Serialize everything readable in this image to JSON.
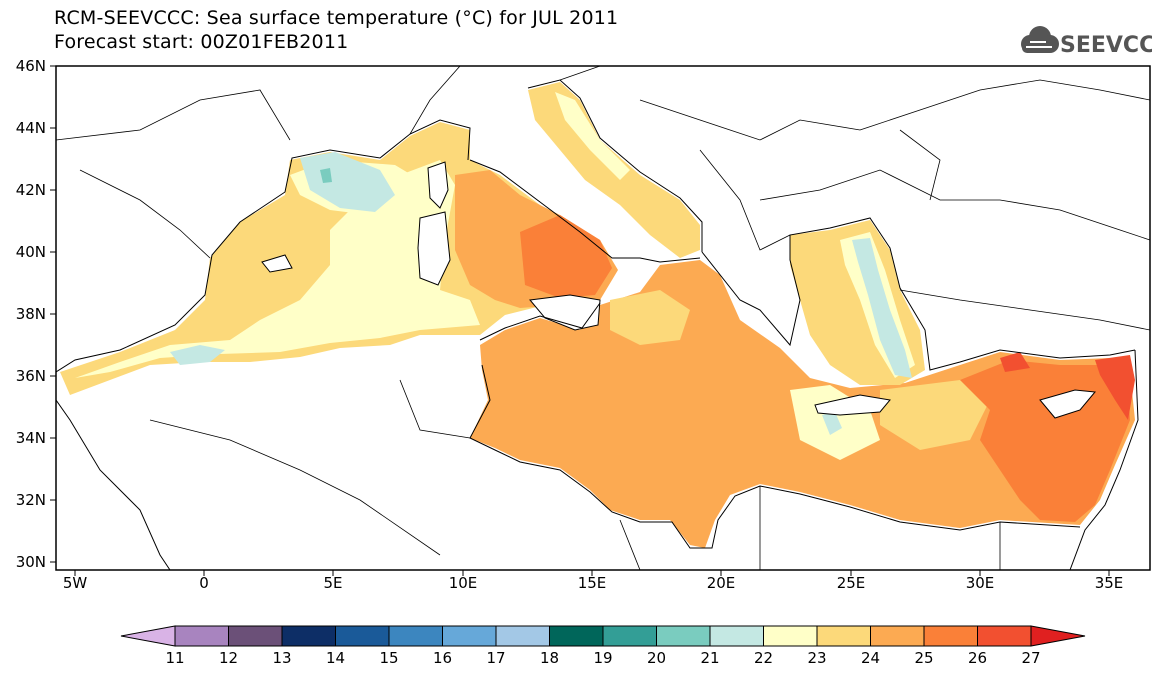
{
  "title_line1": "RCM-SEEVCCC: Sea surface temperature (°C) for JUL 2011",
  "title_line2": "Forecast start: 00Z01FEB2011",
  "logo_text": "SEEVCCC",
  "map": {
    "region": "Mediterranean Sea",
    "variable": "Sea surface temperature",
    "units": "°C",
    "lon_range": [
      -6,
      36.5
    ],
    "lat_range": [
      30,
      46
    ],
    "lat_ticks": [
      "46N",
      "44N",
      "42N",
      "40N",
      "38N",
      "36N",
      "34N",
      "32N",
      "30N"
    ],
    "lon_ticks": [
      "5W",
      "0",
      "5E",
      "10E",
      "15E",
      "20E",
      "25E",
      "30E",
      "35E"
    ]
  },
  "colorbar": {
    "levels": [
      "11",
      "12",
      "13",
      "14",
      "15",
      "16",
      "17",
      "18",
      "19",
      "20",
      "21",
      "22",
      "23",
      "24",
      "25",
      "26",
      "27"
    ],
    "colors": [
      "#d9b3e6",
      "#a884bf",
      "#6b5078",
      "#0d2e66",
      "#1a5a99",
      "#3c86bf",
      "#66a8d9",
      "#a3c8e6",
      "#00665a",
      "#339e96",
      "#7accbf",
      "#c4e8e3",
      "#ffffc8",
      "#fcd97a",
      "#fcaa52",
      "#fa8038",
      "#f25030",
      "#e02020"
    ]
  },
  "colors": {
    "sea_warm_26": "#f25030",
    "sea_25": "#fa8038",
    "sea_24": "#fcaa52",
    "sea_23": "#fcd97a",
    "sea_22": "#ffffc8",
    "sea_21": "#c4e8e3",
    "sea_20": "#7accbf"
  }
}
